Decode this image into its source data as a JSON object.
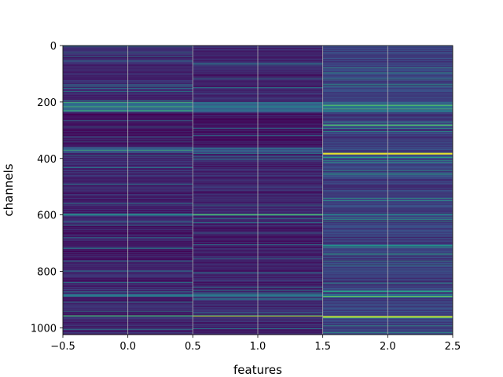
{
  "chart_data": {
    "type": "heatmap",
    "title": "",
    "xlabel": "features",
    "ylabel": "channels",
    "xlim": [
      -0.5,
      2.5
    ],
    "ylim": [
      1024,
      0
    ],
    "y_inverted": true,
    "grid": true,
    "columns": [
      0,
      1,
      2
    ],
    "rows": 1024,
    "x_tick_labels": [
      "−0.5",
      "0.0",
      "0.5",
      "1.0",
      "1.5",
      "2.0",
      "2.5"
    ],
    "x_ticks": [
      -0.5,
      0.0,
      0.5,
      1.0,
      1.5,
      2.0,
      2.5
    ],
    "y_tick_labels": [
      "0",
      "200",
      "400",
      "600",
      "800",
      "1000"
    ],
    "y_ticks": [
      0,
      200,
      400,
      600,
      800,
      1000
    ],
    "colormap": "viridis",
    "value_range": [
      0,
      1
    ],
    "grid_color": "#b0b0b0",
    "bands": [
      {
        "start": 0,
        "end": 1024,
        "columns": [
          0,
          1
        ],
        "level": 0.12
      },
      {
        "start": 0,
        "end": 1024,
        "columns": [
          2
        ],
        "level": 0.2
      },
      {
        "start": 200,
        "end": 235,
        "columns": [
          0,
          1,
          2
        ],
        "level": 0.35
      },
      {
        "start": 240,
        "end": 360,
        "columns": [
          0,
          1
        ],
        "level": 0.06
      },
      {
        "start": 360,
        "end": 380,
        "columns": [
          0,
          1
        ],
        "level": 0.28
      },
      {
        "start": 380,
        "end": 385,
        "columns": [
          2
        ],
        "level": 0.95
      },
      {
        "start": 280,
        "end": 284,
        "columns": [
          2
        ],
        "level": 0.7
      },
      {
        "start": 595,
        "end": 600,
        "columns": [
          0,
          1,
          2
        ],
        "level": 0.45
      },
      {
        "start": 640,
        "end": 760,
        "columns": [
          0,
          1
        ],
        "level": 0.08
      },
      {
        "start": 706,
        "end": 712,
        "columns": [
          2
        ],
        "level": 0.55
      },
      {
        "start": 880,
        "end": 890,
        "columns": [
          0,
          1,
          2
        ],
        "level": 0.4
      },
      {
        "start": 887,
        "end": 890,
        "columns": [
          2
        ],
        "level": 0.8
      },
      {
        "start": 955,
        "end": 960,
        "columns": [
          0,
          1
        ],
        "level": 0.6
      },
      {
        "start": 958,
        "end": 963,
        "columns": [
          2
        ],
        "level": 0.9
      }
    ]
  }
}
